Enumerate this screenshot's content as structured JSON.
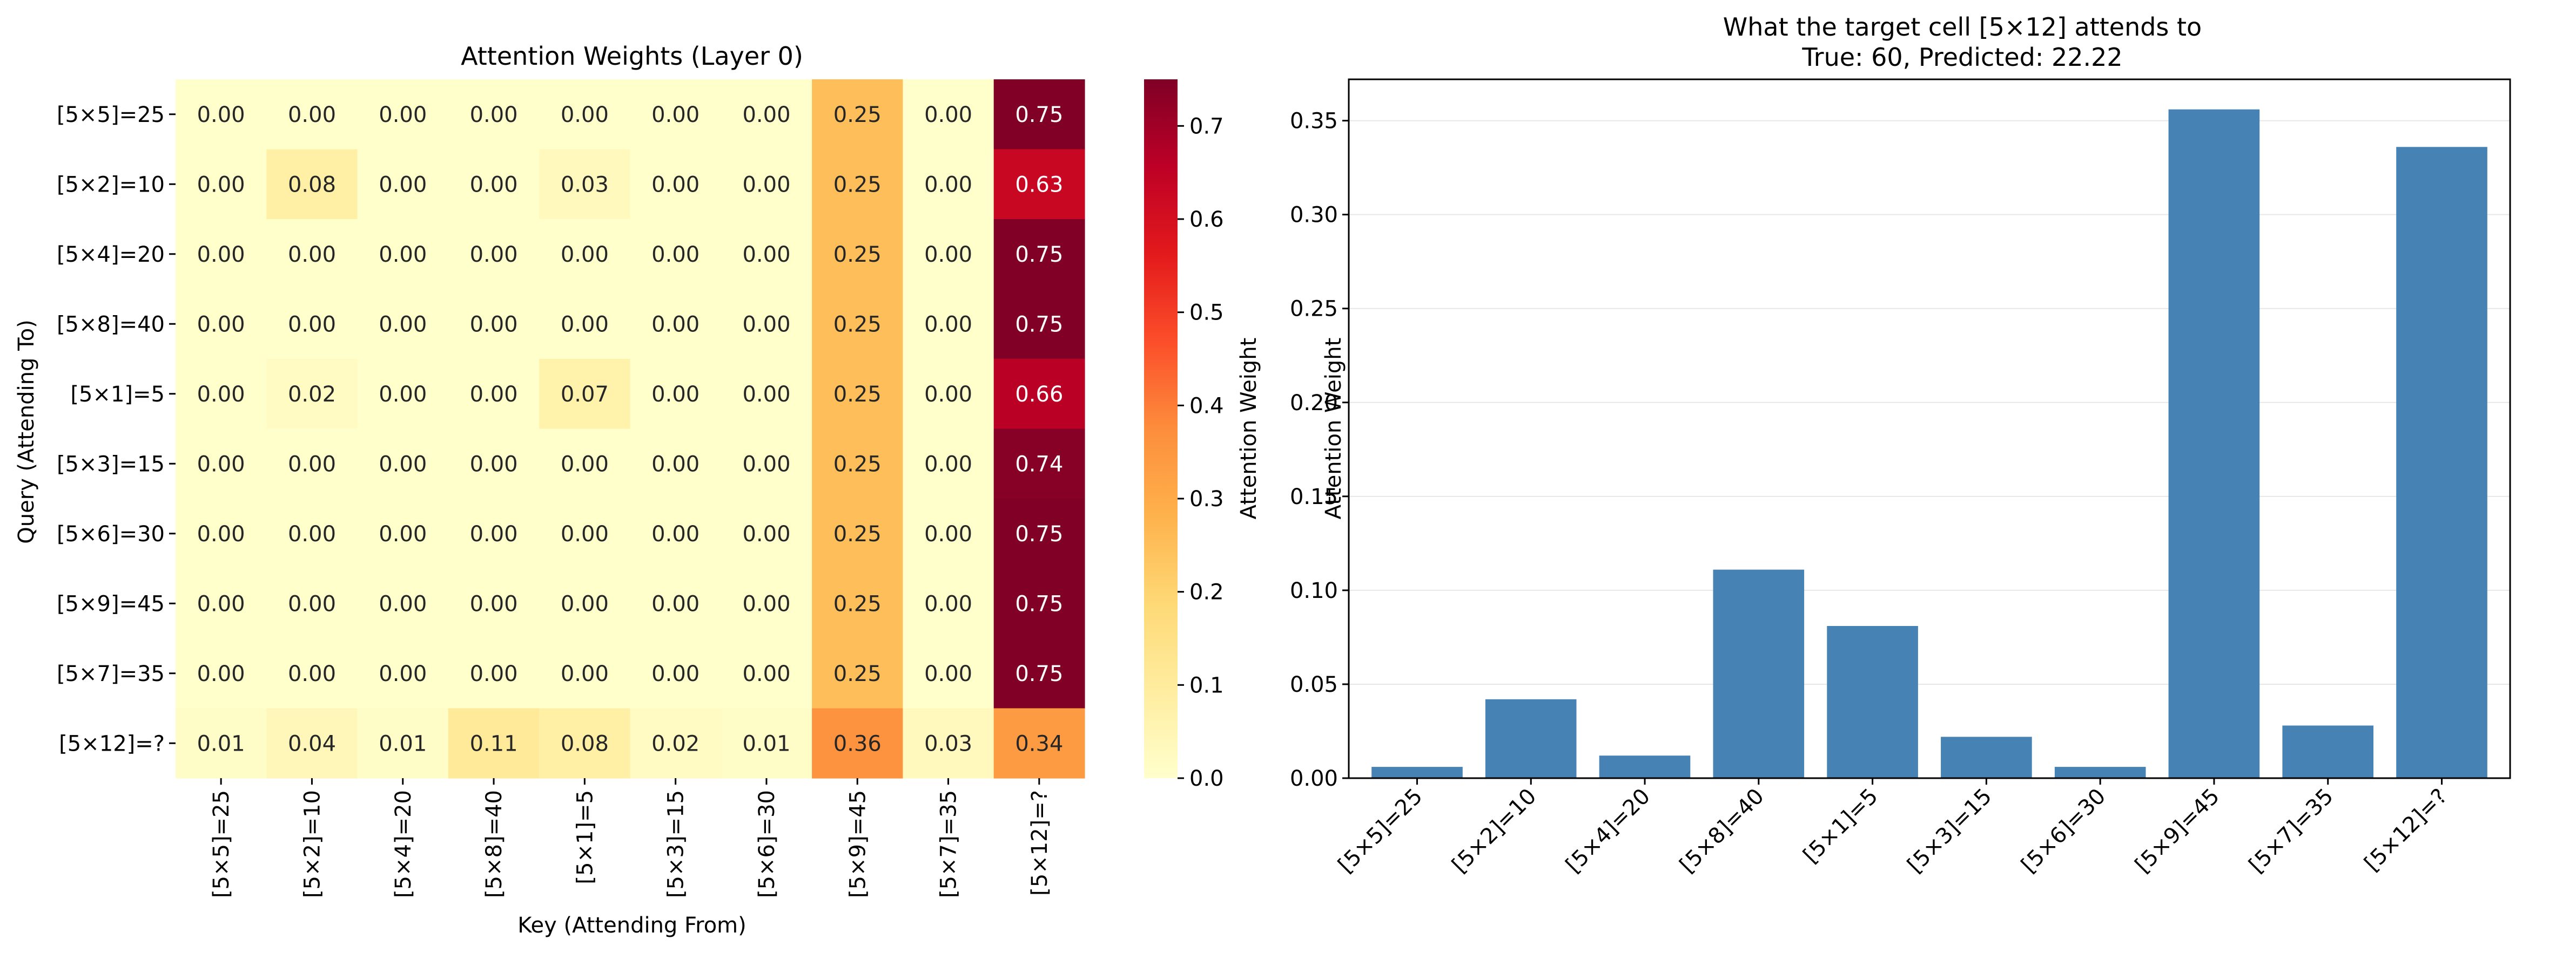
{
  "chart_data": [
    {
      "type": "heatmap",
      "title": "Attention Weights (Layer 0)",
      "xlabel": "Key (Attending From)",
      "ylabel": "Query (Attending To)",
      "x_categories": [
        "[5×5]=25",
        "[5×2]=10",
        "[5×4]=20",
        "[5×8]=40",
        "[5×1]=5",
        "[5×3]=15",
        "[5×6]=30",
        "[5×9]=45",
        "[5×7]=35",
        "[5×12]=?"
      ],
      "y_categories": [
        "[5×5]=25",
        "[5×2]=10",
        "[5×4]=20",
        "[5×8]=40",
        "[5×1]=5",
        "[5×3]=15",
        "[5×6]=30",
        "[5×9]=45",
        "[5×7]=35",
        "[5×12]=?"
      ],
      "values": [
        [
          0.0,
          0.0,
          0.0,
          0.0,
          0.0,
          0.0,
          0.0,
          0.25,
          0.0,
          0.75
        ],
        [
          0.0,
          0.08,
          0.0,
          0.0,
          0.03,
          0.0,
          0.0,
          0.25,
          0.0,
          0.63
        ],
        [
          0.0,
          0.0,
          0.0,
          0.0,
          0.0,
          0.0,
          0.0,
          0.25,
          0.0,
          0.75
        ],
        [
          0.0,
          0.0,
          0.0,
          0.0,
          0.0,
          0.0,
          0.0,
          0.25,
          0.0,
          0.75
        ],
        [
          0.0,
          0.02,
          0.0,
          0.0,
          0.07,
          0.0,
          0.0,
          0.25,
          0.0,
          0.66
        ],
        [
          0.0,
          0.0,
          0.0,
          0.0,
          0.0,
          0.0,
          0.0,
          0.25,
          0.0,
          0.74
        ],
        [
          0.0,
          0.0,
          0.0,
          0.0,
          0.0,
          0.0,
          0.0,
          0.25,
          0.0,
          0.75
        ],
        [
          0.0,
          0.0,
          0.0,
          0.0,
          0.0,
          0.0,
          0.0,
          0.25,
          0.0,
          0.75
        ],
        [
          0.0,
          0.0,
          0.0,
          0.0,
          0.0,
          0.0,
          0.0,
          0.25,
          0.0,
          0.75
        ],
        [
          0.01,
          0.04,
          0.01,
          0.11,
          0.08,
          0.02,
          0.01,
          0.36,
          0.03,
          0.34
        ]
      ],
      "colormap": "YlOrRd",
      "colorbar": {
        "label": "Attention Weight",
        "range": [
          0.0,
          0.75
        ],
        "ticks": [
          "0.0",
          "0.1",
          "0.2",
          "0.3",
          "0.4",
          "0.5",
          "0.6",
          "0.7"
        ]
      }
    },
    {
      "type": "bar",
      "title": "What the target cell [5×12] attends to",
      "subtitle": "True: 60, Predicted: 22.22",
      "xlabel": "",
      "ylabel": "Attention Weight",
      "categories": [
        "[5×5]=25",
        "[5×2]=10",
        "[5×4]=20",
        "[5×8]=40",
        "[5×1]=5",
        "[5×3]=15",
        "[5×6]=30",
        "[5×9]=45",
        "[5×7]=35",
        "[5×12]=?"
      ],
      "values": [
        0.006,
        0.042,
        0.012,
        0.111,
        0.081,
        0.022,
        0.006,
        0.356,
        0.028,
        0.336
      ],
      "ylim": [
        0,
        0.372
      ],
      "yticks": [
        "0.00",
        "0.05",
        "0.10",
        "0.15",
        "0.20",
        "0.25",
        "0.30",
        "0.35"
      ],
      "grid": "y",
      "bar_color": "#4682b4"
    }
  ]
}
